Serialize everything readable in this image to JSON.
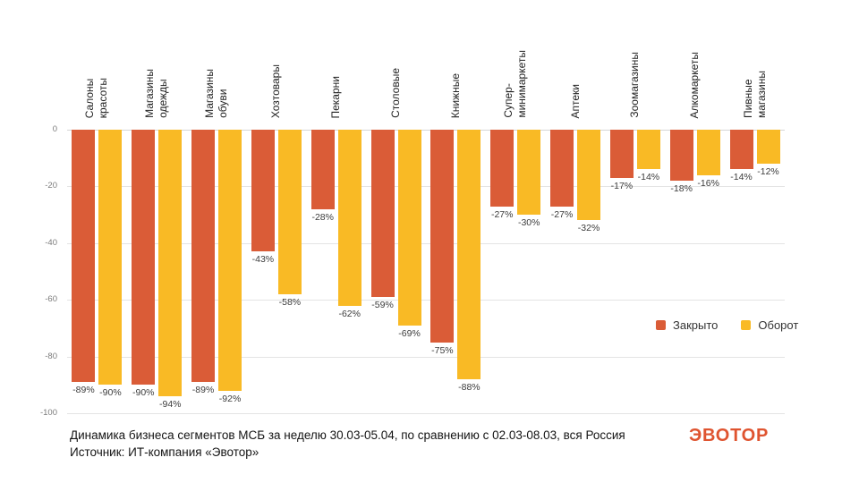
{
  "chart_data": {
    "type": "bar",
    "categories": [
      "Салоны\nкрасоты",
      "Магазины\nодежды",
      "Магазины\nобуви",
      "Хозтовары",
      "Пекарни",
      "Столовые",
      "Книжные",
      "Супер-\nминимаркеты",
      "Аптеки",
      "Зоомагазины",
      "Алкомаркеты",
      "Пивные\nмагазины"
    ],
    "series": [
      {
        "name": "Закрыто",
        "color": "#DA5C37",
        "values": [
          -89,
          -90,
          -89,
          -43,
          -28,
          -59,
          -75,
          -27,
          -27,
          -17,
          -18,
          -14
        ]
      },
      {
        "name": "Оборот",
        "color": "#F9BA25",
        "values": [
          -90,
          -94,
          -92,
          -58,
          -62,
          -69,
          -88,
          -30,
          -32,
          -14,
          -16,
          -12
        ]
      }
    ],
    "title": "",
    "xlabel": "",
    "ylabel": "",
    "ylim": [
      -100,
      0
    ],
    "yticks": [
      0,
      -20,
      -40,
      -60,
      -80,
      -100
    ],
    "grid": "horizontal",
    "legend_position": "middle-right",
    "value_label_format": "{v}%"
  },
  "caption": {
    "line1": "Динамика бизнеса сегментов МСБ за неделю 30.03-05.04, по сравнению с 02.03-08.03, вся Россия",
    "line2": "Источник: ИТ-компания «Эвотор»"
  },
  "logo": {
    "text": "ЭВОТОР",
    "color": "#DF5430"
  }
}
